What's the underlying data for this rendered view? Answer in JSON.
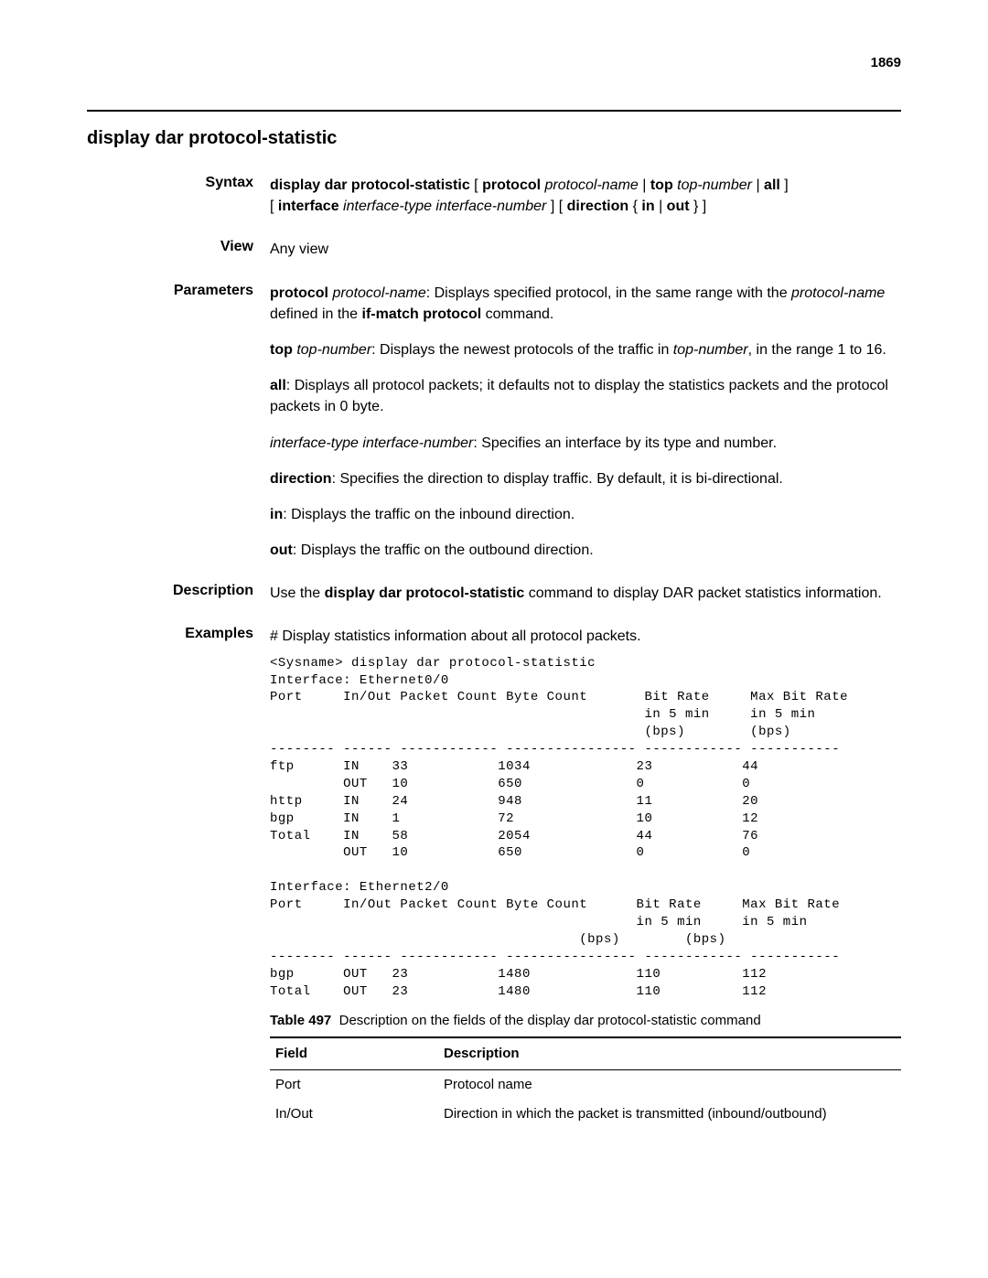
{
  "page_number": "1869",
  "section_title": "display dar protocol-statistic",
  "syntax": {
    "label": "Syntax",
    "line1_parts": [
      {
        "t": "display dar protocol-statistic",
        "b": true
      },
      {
        "t": " [ "
      },
      {
        "t": "protocol",
        "b": true
      },
      {
        "t": " "
      },
      {
        "t": "protocol-name",
        "i": true
      },
      {
        "t": " | "
      },
      {
        "t": "top",
        "b": true
      },
      {
        "t": " "
      },
      {
        "t": "top-number",
        "i": true
      },
      {
        "t": " | "
      },
      {
        "t": "all",
        "b": true
      },
      {
        "t": " ]"
      }
    ],
    "line2_parts": [
      {
        "t": "[ "
      },
      {
        "t": "interface",
        "b": true
      },
      {
        "t": " "
      },
      {
        "t": "interface-type interface-number",
        "i": true
      },
      {
        "t": " ] [ "
      },
      {
        "t": "direction",
        "b": true
      },
      {
        "t": " { "
      },
      {
        "t": "in",
        "b": true
      },
      {
        "t": " | "
      },
      {
        "t": "out",
        "b": true
      },
      {
        "t": " } ]"
      }
    ]
  },
  "view": {
    "label": "View",
    "text": "Any view"
  },
  "parameters": {
    "label": "Parameters",
    "items": [
      [
        {
          "t": "protocol",
          "b": true
        },
        {
          "t": " "
        },
        {
          "t": "protocol-name",
          "i": true
        },
        {
          "t": ": Displays specified protocol, in the same range with the "
        },
        {
          "t": "protocol-name",
          "i": true
        },
        {
          "t": " defined in the "
        },
        {
          "t": "if-match protocol",
          "b": true
        },
        {
          "t": " command."
        }
      ],
      [
        {
          "t": "top",
          "b": true
        },
        {
          "t": " "
        },
        {
          "t": "top-number",
          "i": true
        },
        {
          "t": ": Displays the newest protocols of the traffic in "
        },
        {
          "t": "top-number",
          "i": true
        },
        {
          "t": ", in the range 1 to 16."
        }
      ],
      [
        {
          "t": "all",
          "b": true
        },
        {
          "t": ": Displays all protocol packets; it defaults not to display the statistics packets and the protocol packets in 0 byte."
        }
      ],
      [
        {
          "t": "interface-type interface-number",
          "i": true
        },
        {
          "t": ": Specifies an interface by its type and number."
        }
      ],
      [
        {
          "t": "direction",
          "b": true
        },
        {
          "t": ": Specifies the direction to display traffic. By default, it is bi-directional."
        }
      ],
      [
        {
          "t": "in",
          "b": true
        },
        {
          "t": ": Displays the traffic on the inbound direction."
        }
      ],
      [
        {
          "t": "out",
          "b": true
        },
        {
          "t": ": Displays the traffic on the outbound direction."
        }
      ]
    ]
  },
  "description": {
    "label": "Description",
    "parts": [
      {
        "t": "Use the "
      },
      {
        "t": "display dar protocol-statistic",
        "b": true
      },
      {
        "t": " command to display DAR packet statistics information."
      }
    ]
  },
  "examples": {
    "label": "Examples",
    "intro": "# Display statistics information about all protocol packets.",
    "cli": "<Sysname> display dar protocol-statistic\nInterface: Ethernet0/0\nPort     In/Out Packet Count Byte Count       Bit Rate     Max Bit Rate\n                                              in 5 min     in 5 min\n                                              (bps)        (bps)\n-------- ------ ------------ ---------------- ------------ -----------\nftp      IN    33           1034             23           44\n         OUT   10           650              0            0\nhttp     IN    24           948              11           20\nbgp      IN    1            72               10           12\nTotal    IN    58           2054             44           76\n         OUT   10           650              0            0\n\nInterface: Ethernet2/0\nPort     In/Out Packet Count Byte Count      Bit Rate     Max Bit Rate\n                                             in 5 min     in 5 min\n                                      (bps)        (bps)\n-------- ------ ------------ ---------------- ------------ -----------\nbgp      OUT   23           1480             110          112\nTotal    OUT   23           1480             110          112"
  },
  "table": {
    "caption_prefix": "Table 497",
    "caption_text": "Description on the fields of the display dar protocol-statistic command",
    "header_field": "Field",
    "header_desc": "Description",
    "rows": [
      {
        "field": "Port",
        "desc": "Protocol name"
      },
      {
        "field": "In/Out",
        "desc": "Direction in which the packet is transmitted (inbound/outbound)"
      }
    ]
  }
}
